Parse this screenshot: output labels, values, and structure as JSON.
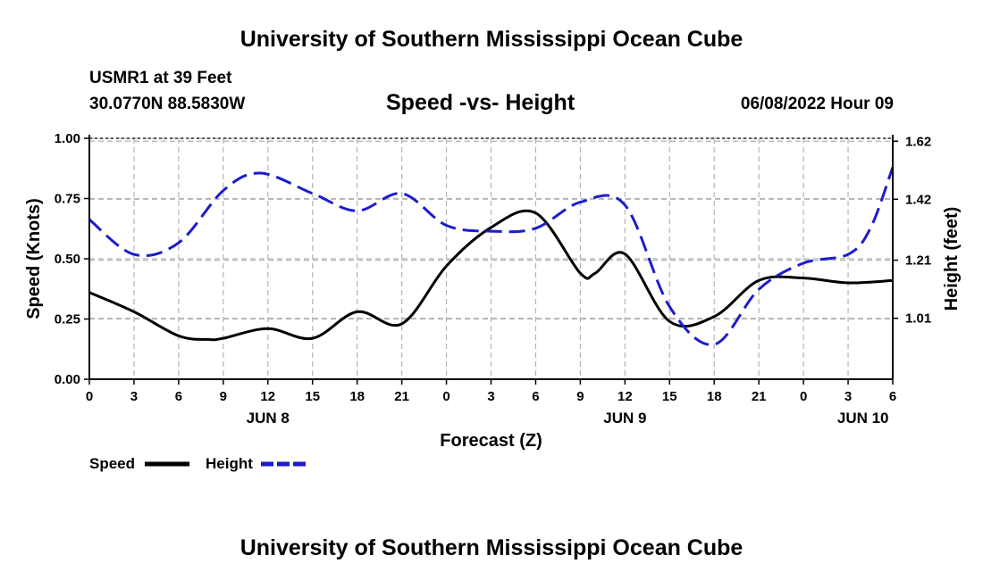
{
  "header": {
    "title_top": "University of Southern Mississippi Ocean Cube",
    "station": "USMR1 at 39 Feet",
    "coords": "30.0770N  88.5830W",
    "chart_title": "Speed -vs- Height",
    "timestamp": "06/08/2022 Hour 09",
    "title_bottom": "University of Southern Mississippi Ocean Cube"
  },
  "chart_data": {
    "type": "line",
    "title": "Speed -vs- Height",
    "xlabel": "Forecast (Z)",
    "ylabel": "Speed (Knots)",
    "y2label": "Height (feet)",
    "xlim": [
      0,
      54
    ],
    "ylim": [
      0,
      1.0
    ],
    "y2lim": [
      0.8,
      1.63
    ],
    "yticks": [
      0,
      0.25,
      0.5,
      0.75,
      1.0
    ],
    "ytick_labels": [
      "0.00",
      "0.25",
      "0.50",
      "0.75",
      "1.00"
    ],
    "y2ticks": [
      1.01,
      1.21,
      1.42,
      1.62
    ],
    "y2tick_labels": [
      "1.01",
      "1.21",
      "1.42",
      "1.62"
    ],
    "xticks": [
      0,
      3,
      6,
      9,
      12,
      15,
      18,
      21,
      24,
      27,
      30,
      33,
      36,
      39,
      42,
      45,
      48,
      51,
      54
    ],
    "xtick_labels": [
      "0",
      "3",
      "6",
      "9",
      "12",
      "15",
      "18",
      "21",
      "0",
      "3",
      "6",
      "9",
      "12",
      "15",
      "18",
      "21",
      "0",
      "3",
      "6"
    ],
    "date_labels": [
      {
        "x": 12,
        "label": "JUN 8"
      },
      {
        "x": 36,
        "label": "JUN 9"
      },
      {
        "x": 52,
        "label": "JUN 10"
      }
    ],
    "grid": true,
    "series": [
      {
        "name": "Speed",
        "axis": "left",
        "color": "#000000",
        "dash": "solid",
        "x": [
          0,
          3,
          6,
          8,
          9,
          12,
          15,
          18,
          21,
          24,
          27,
          30,
          33,
          34,
          36,
          39,
          42,
          45,
          48,
          51,
          54
        ],
        "values": [
          0.36,
          0.28,
          0.18,
          0.165,
          0.17,
          0.21,
          0.17,
          0.28,
          0.23,
          0.47,
          0.63,
          0.69,
          0.44,
          0.44,
          0.52,
          0.24,
          0.26,
          0.41,
          0.42,
          0.4,
          0.41
        ]
      },
      {
        "name": "Height",
        "axis": "right",
        "color": "#1c1ccc",
        "dash": "dashed",
        "x": [
          0,
          3,
          6,
          9,
          11.5,
          15,
          18,
          21,
          24,
          27,
          30,
          33,
          36,
          39,
          42,
          45,
          48,
          51,
          52.5,
          54
        ],
        "values": [
          1.35,
          1.23,
          1.27,
          1.45,
          1.51,
          1.44,
          1.38,
          1.44,
          1.33,
          1.31,
          1.32,
          1.41,
          1.4,
          1.05,
          0.92,
          1.11,
          1.2,
          1.23,
          1.32,
          1.53
        ]
      }
    ],
    "legend": {
      "placement": "bottom-left",
      "entries": [
        "Speed",
        "Height"
      ]
    }
  }
}
